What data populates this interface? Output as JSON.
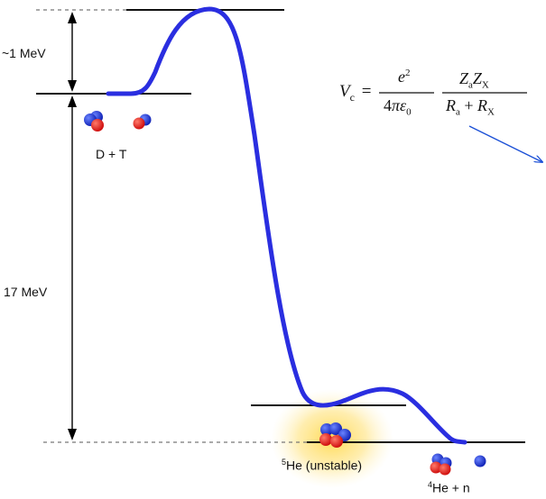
{
  "labels": {
    "barrier": "~1 MeV",
    "energy": "17 MeV",
    "reactants": "D + T",
    "intermediate_sup": "5",
    "intermediate": "He (unstable)",
    "products_sup": "4",
    "products": "He + n"
  },
  "equation": {
    "lhs_symbol": "V",
    "lhs_sub": "c",
    "equals": "=",
    "num1": "e",
    "num1_sup": "2",
    "den1_prefix": "4",
    "den1_pi": "π",
    "den1_eps": "ε",
    "den1_sub": "0",
    "num2_Z1": "Z",
    "num2_Z1_sub": "a",
    "num2_Z2": "Z",
    "num2_Z2_sub": "X",
    "den2_R1": "R",
    "den2_R1_sub": "a",
    "den2_plus": "+",
    "den2_R2": "R",
    "den2_R2_sub": "X"
  },
  "colors": {
    "curve": "#2a2ee0",
    "proton": "#e0191b",
    "neutron": "#1e2fd6",
    "glow": "#ffd84a",
    "arrow": "#1a4fd6"
  }
}
